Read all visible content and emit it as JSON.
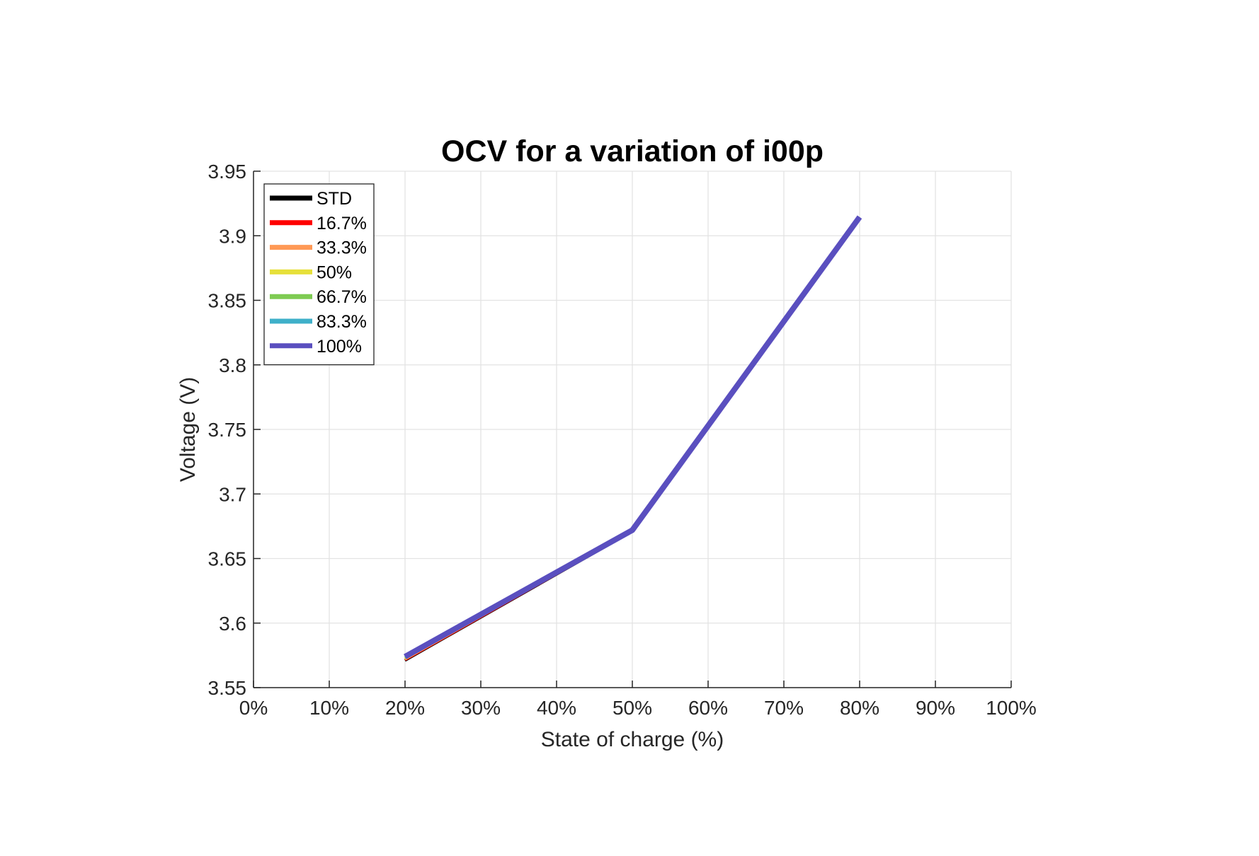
{
  "chart_data": {
    "type": "line",
    "title": "OCV for a variation of i00p",
    "xlabel": "State of charge (%)",
    "ylabel": "Voltage (V)",
    "xlim": [
      0,
      100
    ],
    "ylim": [
      3.55,
      3.95
    ],
    "x_ticks": [
      0,
      10,
      20,
      30,
      40,
      50,
      60,
      70,
      80,
      90,
      100
    ],
    "x_tick_labels": [
      "0%",
      "10%",
      "20%",
      "30%",
      "40%",
      "50%",
      "60%",
      "70%",
      "80%",
      "90%",
      "100%"
    ],
    "y_ticks": [
      3.55,
      3.6,
      3.65,
      3.7,
      3.75,
      3.8,
      3.85,
      3.9,
      3.95
    ],
    "y_tick_labels": [
      "3.55",
      "3.6",
      "3.65",
      "3.7",
      "3.75",
      "3.8",
      "3.85",
      "3.9",
      "3.95"
    ],
    "grid": true,
    "legend_position": "top-left",
    "x": [
      20,
      50,
      80
    ],
    "series": [
      {
        "name": "STD",
        "color": "#000000",
        "values": [
          3.571,
          3.671,
          3.914
        ]
      },
      {
        "name": "16.7%",
        "color": "#ff0000",
        "values": [
          3.5715,
          3.6712,
          3.914
        ]
      },
      {
        "name": "33.3%",
        "color": "#ff9955",
        "values": [
          3.572,
          3.6714,
          3.9142
        ]
      },
      {
        "name": "50%",
        "color": "#e6e03a",
        "values": [
          3.5725,
          3.6716,
          3.9142
        ]
      },
      {
        "name": "66.7%",
        "color": "#7ecb52",
        "values": [
          3.573,
          3.6718,
          3.9144
        ]
      },
      {
        "name": "83.3%",
        "color": "#3fb0c9",
        "values": [
          3.5735,
          3.672,
          3.9144
        ]
      },
      {
        "name": "100%",
        "color": "#5a4fbf",
        "values": [
          3.574,
          3.672,
          3.9145
        ]
      }
    ]
  }
}
